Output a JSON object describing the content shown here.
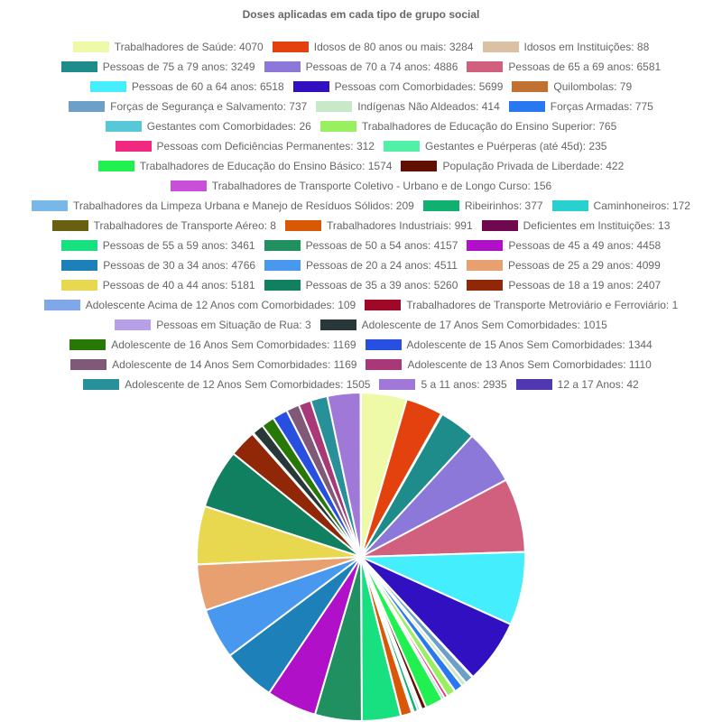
{
  "chart_data": {
    "type": "pie",
    "title": "Doses aplicadas em cada tipo de grupo social",
    "labels": [
      "Trabalhadores de Saúde: 4070",
      "Idosos de 80 anos ou mais: 3284",
      "Idosos em Instituições: 88",
      "Pessoas de 75 a 79 anos: 3249",
      "Pessoas de 70 a 74 anos: 4886",
      "Pessoas de 65 a 69 anos: 6581",
      "Pessoas de 60 a 64 anos: 6518",
      "Pessoas com Comorbidades: 5699",
      "Quilombolas: 79",
      "Forças de Segurança e Salvamento: 737",
      "Indígenas Não Aldeados: 414",
      "Forças Armadas: 775",
      "Gestantes com Comorbidades: 26",
      "Trabalhadores de Educação do Ensino Superior: 765",
      "Pessoas com Deficiências Permanentes: 312",
      "Gestantes e Puérperas (até 45d): 235",
      "Trabalhadores de Educação do Ensino Básico: 1574",
      "População Privada de Liberdade: 422",
      "Trabalhadores de Transporte Coletivo - Urbano e de Longo Curso: 156",
      "Trabalhadores da Limpeza Urbana e Manejo de Resíduos Sólidos: 209",
      "Ribeirinhos: 377",
      "Caminhoneiros: 172",
      "Trabalhadores de Transporte Aéreo: 8",
      "Trabalhadores Industriais: 991",
      "Deficientes em Instituições: 13",
      "Pessoas de 55 a 59 anos: 3461",
      "Pessoas de 50 a 54 anos: 4157",
      "Pessoas de 45 a 49 anos: 4458",
      "Pessoas de 30 a 34 anos: 4766",
      "Pessoas de 20 a 24 anos: 4511",
      "Pessoas de 25 a 29 anos: 4099",
      "Pessoas de 40 a 44 anos: 5181",
      "Pessoas de 35 a 39 anos: 5260",
      "Pessoas de 18 a 19 anos: 2407",
      "Adolescente Acima de 12 Anos com Comorbidades: 109",
      "Trabalhadores de Transporte Metroviário e Ferroviário: 1",
      "Pessoas em Situação de Rua: 3",
      "Adolescente de 17 Anos Sem Comorbidades: 1015",
      "Adolescente de 16 Anos Sem Comorbidades: 1169",
      "Adolescente de 15 Anos Sem Comorbidades: 1344",
      "Adolescente de 14 Anos Sem Comorbidades: 1169",
      "Adolescente de 13 Anos Sem Comorbidades: 1110",
      "Adolescente de 12 Anos Sem Comorbidades: 1505",
      "5 a 11 anos: 2935",
      "12 a 17 Anos: 42"
    ],
    "values": [
      4070,
      3284,
      88,
      3249,
      4886,
      6581,
      6518,
      5699,
      79,
      737,
      414,
      775,
      26,
      765,
      312,
      235,
      1574,
      422,
      156,
      209,
      377,
      172,
      8,
      991,
      13,
      3461,
      4157,
      4458,
      4766,
      4511,
      4099,
      5181,
      5260,
      2407,
      109,
      1,
      3,
      1015,
      1169,
      1344,
      1169,
      1110,
      1505,
      2935,
      42
    ],
    "colors": [
      "#eefaa8",
      "#e3420f",
      "#dcc0a4",
      "#1f8c8c",
      "#8c78d8",
      "#d0607e",
      "#44eefc",
      "#3010c0",
      "#c07030",
      "#6ca0c8",
      "#c8e8c8",
      "#2a78f0",
      "#58c8d8",
      "#98f060",
      "#f02880",
      "#50f0a8",
      "#20f050",
      "#601000",
      "#c850d8",
      "#78b8e8",
      "#10b070",
      "#28d0d0",
      "#686010",
      "#d85808",
      "#700850",
      "#18e080",
      "#209060",
      "#b010c8",
      "#1e80b8",
      "#4898f0",
      "#e8a070",
      "#e8d850",
      "#108060",
      "#902808",
      "#80a8e8",
      "#a00828",
      "#b8a0e8",
      "#283838",
      "#287808",
      "#2850e0",
      "#805878",
      "#a83878",
      "#289098",
      "#a078d8",
      "#5038b0"
    ]
  }
}
